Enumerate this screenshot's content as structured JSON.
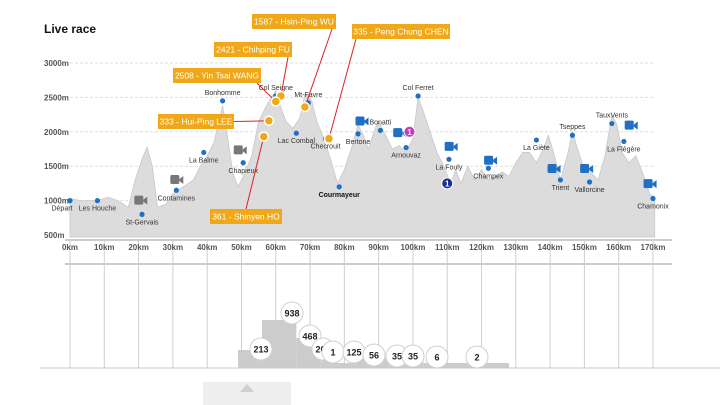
{
  "header": {
    "title": "Live race"
  },
  "colors": {
    "profile": "#dcdcdc",
    "checkpoint": "#1f6fc4",
    "runner": "#f0a818",
    "arrow": "#e02020",
    "leader": "#c43cb8",
    "marker": "#1a2e8a",
    "hist_bar": "#cccccc",
    "axis": "#999999"
  },
  "chart_data": {
    "type": "area",
    "xlabel": "",
    "ylabel": "",
    "xlim": [
      0,
      170
    ],
    "ylim": [
      500,
      3000
    ],
    "x_ticks": [
      0,
      10,
      20,
      30,
      40,
      50,
      60,
      70,
      80,
      90,
      100,
      110,
      120,
      130,
      140,
      150,
      160,
      170
    ],
    "x_tick_labels": [
      "0km",
      "10km",
      "20km",
      "30km",
      "40km",
      "50km",
      "60km",
      "70km",
      "80km",
      "90km",
      "100km",
      "110km",
      "120km",
      "130km",
      "140km",
      "150km",
      "160km",
      "170km"
    ],
    "y_ticks": [
      500,
      1000,
      1500,
      2000,
      2500,
      3000
    ],
    "y_tick_labels": [
      "500m",
      "1000m",
      "1500m",
      "2000m",
      "2500m",
      "3000m"
    ],
    "profile": [
      [
        0,
        1030
      ],
      [
        3,
        1000
      ],
      [
        5,
        1000
      ],
      [
        8,
        1000
      ],
      [
        11,
        1050
      ],
      [
        14,
        1000
      ],
      [
        17,
        900
      ],
      [
        19,
        1300
      ],
      [
        21,
        1600
      ],
      [
        22.5,
        1780
      ],
      [
        24,
        1500
      ],
      [
        25.5,
        900
      ],
      [
        28,
        950
      ],
      [
        30,
        1100
      ],
      [
        33,
        1200
      ],
      [
        36,
        1300
      ],
      [
        38,
        1500
      ],
      [
        40,
        1650
      ],
      [
        42,
        1850
      ],
      [
        44.5,
        2380
      ],
      [
        46,
        1900
      ],
      [
        47.5,
        1400
      ],
      [
        49,
        1200
      ],
      [
        51,
        1400
      ],
      [
        53,
        1650
      ],
      [
        55,
        2150
      ],
      [
        57.5,
        2400
      ],
      [
        60,
        2600
      ],
      [
        61.5,
        2350
      ],
      [
        63,
        2150
      ],
      [
        65,
        2050
      ],
      [
        67,
        2200
      ],
      [
        68.5,
        2550
      ],
      [
        70.5,
        2450
      ],
      [
        72,
        2150
      ],
      [
        74,
        1900
      ],
      [
        76,
        1600
      ],
      [
        78,
        1250
      ],
      [
        80,
        1450
      ],
      [
        82,
        1750
      ],
      [
        84,
        2100
      ],
      [
        85.5,
        1950
      ],
      [
        87,
        1750
      ],
      [
        89,
        2050
      ],
      [
        90,
        2150
      ],
      [
        92,
        1950
      ],
      [
        94,
        1750
      ],
      [
        96,
        1800
      ],
      [
        98,
        1700
      ],
      [
        100,
        1900
      ],
      [
        101.5,
        2500
      ],
      [
        103,
        2300
      ],
      [
        105,
        2000
      ],
      [
        107,
        1700
      ],
      [
        109,
        1500
      ],
      [
        111,
        1250
      ],
      [
        112.5,
        1450
      ],
      [
        114,
        1250
      ],
      [
        116,
        1500
      ],
      [
        118,
        1300
      ],
      [
        120,
        1450
      ],
      [
        122,
        1300
      ],
      [
        124,
        1350
      ],
      [
        126,
        1420
      ],
      [
        128,
        1350
      ],
      [
        130,
        1550
      ],
      [
        132,
        1700
      ],
      [
        134,
        1700
      ],
      [
        136,
        1550
      ],
      [
        138,
        1750
      ],
      [
        139.5,
        1950
      ],
      [
        141,
        1700
      ],
      [
        143,
        1300
      ],
      [
        145,
        1650
      ],
      [
        146.5,
        2000
      ],
      [
        148,
        1750
      ],
      [
        150,
        1450
      ],
      [
        152,
        1400
      ],
      [
        154,
        1300
      ],
      [
        156,
        1650
      ],
      [
        158,
        2250
      ],
      [
        159.5,
        2100
      ],
      [
        161,
        1700
      ],
      [
        163,
        1550
      ],
      [
        165,
        1650
      ],
      [
        167,
        1400
      ],
      [
        169,
        1100
      ],
      [
        170.5,
        1030
      ]
    ],
    "waypoints": [
      {
        "name": "Départ",
        "km": 0,
        "alt": 1000
      },
      {
        "name": "Les Houche",
        "km": 8,
        "alt": 1000
      },
      {
        "name": "St-Gervais",
        "km": 21,
        "alt": 800
      },
      {
        "name": "Contamines",
        "km": 31,
        "alt": 1150
      },
      {
        "name": "La Balme",
        "km": 39,
        "alt": 1700
      },
      {
        "name": "Bonhomme",
        "km": 44.5,
        "alt": 2450
      },
      {
        "name": "Chapieux",
        "km": 50.5,
        "alt": 1550
      },
      {
        "name": "Col Seigne",
        "km": 60,
        "alt": 2520
      },
      {
        "name": "Lac Combal",
        "km": 66,
        "alt": 1980
      },
      {
        "name": "Mt-Favre",
        "km": 69.5,
        "alt": 2420
      },
      {
        "name": "Checrouit",
        "km": 74.5,
        "alt": 1900
      },
      {
        "name": "Courmayeur",
        "km": 78.5,
        "alt": 1200
      },
      {
        "name": "Bertone",
        "km": 84,
        "alt": 1970
      },
      {
        "name": "Bonatti",
        "km": 90.5,
        "alt": 2020
      },
      {
        "name": "Arnouvaz",
        "km": 98,
        "alt": 1770
      },
      {
        "name": "Col Ferret",
        "km": 101.5,
        "alt": 2520
      },
      {
        "name": "La Fouly",
        "km": 110.5,
        "alt": 1600
      },
      {
        "name": "Champex",
        "km": 122,
        "alt": 1470
      },
      {
        "name": "La Giète",
        "km": 136,
        "alt": 1880
      },
      {
        "name": "Trient",
        "km": 143,
        "alt": 1300
      },
      {
        "name": "Tseppes",
        "km": 146.5,
        "alt": 1950
      },
      {
        "name": "Vallorcine",
        "km": 151.5,
        "alt": 1270
      },
      {
        "name": "TauxVents",
        "km": 158,
        "alt": 2120
      },
      {
        "name": "La Flégère",
        "km": 161.5,
        "alt": 1860
      },
      {
        "name": "Chamonix",
        "km": 170,
        "alt": 1030
      }
    ],
    "cameras": [
      {
        "name": "camera-contamines",
        "km": 31,
        "alt": 1300
      },
      {
        "name": "camera-st-gervais",
        "km": 20.5,
        "alt": 1000
      },
      {
        "name": "camera-chapieux",
        "km": 49.5,
        "alt": 1730
      },
      {
        "name": "camera-bertone",
        "km": 85,
        "alt": 2150
      },
      {
        "name": "camera-arnouvaz",
        "km": 96,
        "alt": 1980
      },
      {
        "name": "camera-la-fouly",
        "km": 111,
        "alt": 1780
      },
      {
        "name": "camera-champex",
        "km": 122.5,
        "alt": 1580
      },
      {
        "name": "camera-trient",
        "km": 141,
        "alt": 1460
      },
      {
        "name": "camera-vallorcine",
        "km": 150.5,
        "alt": 1460
      },
      {
        "name": "camera-la-flegere",
        "km": 163.5,
        "alt": 2090
      },
      {
        "name": "camera-chamonix",
        "km": 169,
        "alt": 1240
      }
    ],
    "runners": [
      {
        "label": "1587 - Hsin-Ping WU",
        "km": 68.5,
        "alt": 2360
      },
      {
        "label": "335 - Peng Chung CHEN",
        "km": 75.5,
        "alt": 1900
      },
      {
        "label": "2421 - Chihping FU",
        "km": 61.5,
        "alt": 2520
      },
      {
        "label": "2508 - Yin Tsai WANG",
        "km": 60,
        "alt": 2440
      },
      {
        "label": "333 - Hui-Ping LEE",
        "km": 58,
        "alt": 2160
      },
      {
        "label": "361 - Shinyen HO",
        "km": 56.5,
        "alt": 1930
      }
    ],
    "leaders": [
      {
        "label": "1",
        "km": 99,
        "alt": 2000
      },
      {
        "label": "1",
        "km": 110,
        "alt": 1250
      }
    ],
    "histogram": {
      "bins": [
        {
          "km": 50,
          "count": 213
        },
        {
          "km": 60,
          "count": 938
        },
        {
          "km": 70,
          "count": 468
        },
        {
          "km": 75,
          "count": 207
        },
        {
          "km": 80,
          "count": 1
        },
        {
          "km": 85,
          "count": 125
        },
        {
          "km": 90,
          "count": 56
        },
        {
          "km": 95,
          "count": 35
        },
        {
          "km": 100,
          "count": 35
        },
        {
          "km": 110,
          "count": 6
        },
        {
          "km": 125,
          "count": 2
        }
      ],
      "bubble_labels": [
        "213",
        "938",
        "468",
        "207",
        "1",
        "125",
        "56",
        "35",
        "35",
        "6",
        "2"
      ]
    }
  }
}
